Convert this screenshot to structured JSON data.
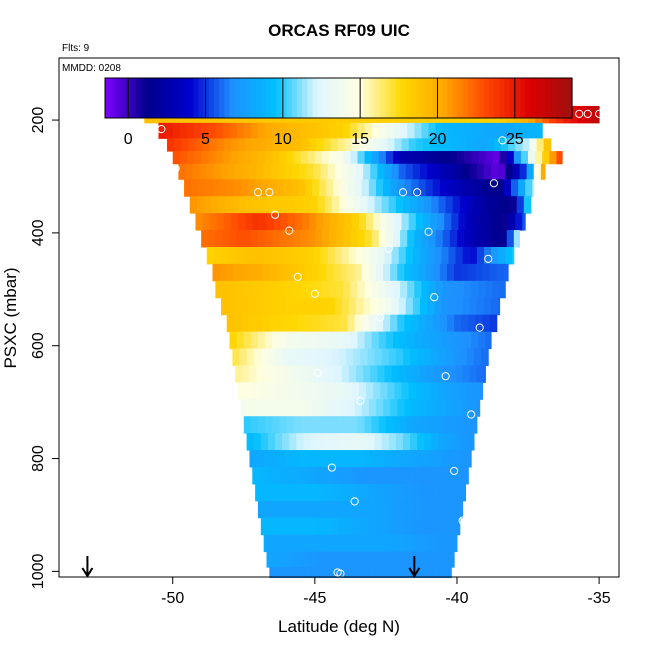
{
  "chart_data": {
    "type": "heatmap",
    "title": "ORCAS RF09 UIC",
    "subtitle_flights": "Flts: 9",
    "subtitle_date": "MMDD: 0208",
    "xlabel": "Latitude (deg N)",
    "ylabel": "PSXC (mbar)",
    "xlim": [
      -54,
      -34.3
    ],
    "ylim": [
      1010,
      90
    ],
    "y_reversed": true,
    "x_ticks": [
      -50,
      -45,
      -40,
      -35
    ],
    "x_tick_labels": [
      "-50",
      "-45",
      "-40",
      "-35"
    ],
    "y_ticks": [
      200,
      400,
      600,
      800,
      1000
    ],
    "y_tick_labels": [
      "200",
      "400",
      "600",
      "800",
      "1000"
    ],
    "colorbar": {
      "min": -1.5,
      "max": 28.7,
      "ticks": [
        0,
        5,
        10,
        15,
        20,
        25
      ],
      "tick_labels": [
        "0",
        "5",
        "10",
        "15",
        "20",
        "25"
      ],
      "palette": [
        "#7f00ff",
        "#00008b",
        "#0000cd",
        "#1e90ff",
        "#00bfff",
        "#e0f6ff",
        "#ffffe0",
        "#ffd700",
        "#ffa500",
        "#ff4500",
        "#dd0000",
        "#a01010"
      ]
    },
    "grid": false,
    "legend_position": "top",
    "layers": [
      {
        "p": 190,
        "lat_start": -51.0,
        "lat_end": -35.0,
        "anchors": [
          [
            -51.0,
            19
          ],
          [
            -40.5,
            18
          ],
          [
            -38.5,
            18
          ],
          [
            -37.5,
            20
          ],
          [
            -36.5,
            24
          ],
          [
            -35.0,
            27.5
          ]
        ]
      },
      {
        "p": 220,
        "lat_start": -50.5,
        "lat_end": -37.0,
        "anchors": [
          [
            -50.5,
            25
          ],
          [
            -48.5,
            23
          ],
          [
            -46.5,
            20
          ],
          [
            -44.0,
            18
          ],
          [
            -42.5,
            14
          ],
          [
            -40.5,
            9
          ],
          [
            -38.5,
            8
          ],
          [
            -37.0,
            9
          ]
        ]
      },
      {
        "p": 245,
        "lat_start": -50.2,
        "lat_end": -36.7,
        "anchors": [
          [
            -50.2,
            24
          ],
          [
            -48.0,
            21
          ],
          [
            -45.5,
            19
          ],
          [
            -43.5,
            15
          ],
          [
            -41.5,
            10
          ],
          [
            -39.0,
            8
          ],
          [
            -37.5,
            12
          ],
          [
            -36.7,
            20
          ]
        ]
      },
      {
        "p": 265,
        "lat_start": -50.0,
        "lat_end": -36.3,
        "anchors": [
          [
            -50.0,
            23
          ],
          [
            -46.5,
            19
          ],
          [
            -44.0,
            14
          ],
          [
            -42.0,
            3
          ],
          [
            -40.0,
            1
          ],
          [
            -38.5,
            -1
          ],
          [
            -37.5,
            12
          ],
          [
            -36.3,
            24
          ]
        ]
      },
      {
        "p": 290,
        "lat_start": -49.8,
        "lat_end": -36.9,
        "anchors": [
          [
            -49.8,
            22
          ],
          [
            -47.5,
            20
          ],
          [
            -45.0,
            17
          ],
          [
            -43.5,
            13
          ],
          [
            -42.0,
            6
          ],
          [
            -40.0,
            2
          ],
          [
            -38.5,
            -1
          ],
          [
            -37.5,
            6
          ],
          [
            -36.9,
            22
          ]
        ]
      },
      {
        "p": 320,
        "lat_start": -49.6,
        "lat_end": -37.3,
        "anchors": [
          [
            -49.6,
            22
          ],
          [
            -47.5,
            21
          ],
          [
            -45.5,
            19
          ],
          [
            -43.5,
            13
          ],
          [
            -42.0,
            7
          ],
          [
            -40.0,
            3
          ],
          [
            -38.5,
            1
          ],
          [
            -37.3,
            12
          ]
        ]
      },
      {
        "p": 350,
        "lat_start": -49.4,
        "lat_end": -37.4,
        "anchors": [
          [
            -49.4,
            21
          ],
          [
            -47.5,
            19
          ],
          [
            -45.0,
            18
          ],
          [
            -43.0,
            12
          ],
          [
            -41.0,
            7
          ],
          [
            -39.0,
            2
          ],
          [
            -38.0,
            1
          ],
          [
            -37.4,
            12
          ]
        ]
      },
      {
        "p": 380,
        "lat_start": -49.2,
        "lat_end": -37.6,
        "anchors": [
          [
            -49.2,
            21
          ],
          [
            -47.0,
            24
          ],
          [
            -45.5,
            22
          ],
          [
            -43.5,
            18
          ],
          [
            -41.5,
            10
          ],
          [
            -39.5,
            3
          ],
          [
            -38.3,
            1
          ],
          [
            -37.6,
            6
          ]
        ]
      },
      {
        "p": 410,
        "lat_start": -49.0,
        "lat_end": -37.8,
        "anchors": [
          [
            -49.0,
            22
          ],
          [
            -47.5,
            23
          ],
          [
            -45.0,
            21
          ],
          [
            -43.0,
            17
          ],
          [
            -41.5,
            9
          ],
          [
            -39.5,
            3
          ],
          [
            -38.3,
            1
          ],
          [
            -37.8,
            14
          ]
        ]
      },
      {
        "p": 440,
        "lat_start": -48.8,
        "lat_end": -38.0,
        "anchors": [
          [
            -48.8,
            18
          ],
          [
            -47.0,
            19
          ],
          [
            -45.0,
            18
          ],
          [
            -43.0,
            14
          ],
          [
            -41.5,
            9
          ],
          [
            -39.5,
            4
          ],
          [
            -38.0,
            10
          ]
        ]
      },
      {
        "p": 470,
        "lat_start": -48.6,
        "lat_end": -38.2,
        "anchors": [
          [
            -48.6,
            21
          ],
          [
            -47.0,
            20
          ],
          [
            -45.0,
            18
          ],
          [
            -43.5,
            16
          ],
          [
            -42.0,
            10
          ],
          [
            -40.0,
            5
          ],
          [
            -38.2,
            6
          ]
        ]
      },
      {
        "p": 500,
        "lat_start": -48.5,
        "lat_end": -38.3,
        "anchors": [
          [
            -48.5,
            19
          ],
          [
            -46.0,
            18
          ],
          [
            -44.0,
            17
          ],
          [
            -42.0,
            12
          ],
          [
            -40.5,
            7
          ],
          [
            -38.3,
            6
          ]
        ]
      },
      {
        "p": 530,
        "lat_start": -48.3,
        "lat_end": -38.5,
        "anchors": [
          [
            -48.3,
            19
          ],
          [
            -46.0,
            18
          ],
          [
            -44.5,
            18
          ],
          [
            -42.5,
            14
          ],
          [
            -40.5,
            7
          ],
          [
            -38.5,
            6
          ]
        ]
      },
      {
        "p": 560,
        "lat_start": -48.1,
        "lat_end": -38.6,
        "anchors": [
          [
            -48.1,
            19
          ],
          [
            -46.5,
            18
          ],
          [
            -44.0,
            17
          ],
          [
            -42.0,
            10
          ],
          [
            -40.0,
            6
          ],
          [
            -38.6,
            5
          ]
        ]
      },
      {
        "p": 590,
        "lat_start": -48.0,
        "lat_end": -38.8,
        "anchors": [
          [
            -48.0,
            18
          ],
          [
            -46.0,
            14
          ],
          [
            -44.0,
            13
          ],
          [
            -42.5,
            10
          ],
          [
            -41.0,
            8
          ],
          [
            -38.8,
            6
          ]
        ]
      },
      {
        "p": 620,
        "lat_start": -47.9,
        "lat_end": -38.9,
        "anchors": [
          [
            -47.9,
            17
          ],
          [
            -46.0,
            13
          ],
          [
            -44.0,
            12
          ],
          [
            -42.0,
            10
          ],
          [
            -40.0,
            7
          ],
          [
            -38.9,
            6
          ]
        ]
      },
      {
        "p": 650,
        "lat_start": -47.8,
        "lat_end": -39.0,
        "anchors": [
          [
            -47.8,
            16
          ],
          [
            -46.0,
            14
          ],
          [
            -44.0,
            12
          ],
          [
            -42.0,
            9
          ],
          [
            -40.5,
            7
          ],
          [
            -39.0,
            6
          ]
        ]
      },
      {
        "p": 680,
        "lat_start": -47.7,
        "lat_end": -39.1,
        "anchors": [
          [
            -47.7,
            15
          ],
          [
            -46.0,
            14
          ],
          [
            -44.0,
            13
          ],
          [
            -42.0,
            10
          ],
          [
            -40.5,
            8
          ],
          [
            -39.1,
            7
          ]
        ]
      },
      {
        "p": 710,
        "lat_start": -47.6,
        "lat_end": -39.2,
        "anchors": [
          [
            -47.6,
            14
          ],
          [
            -45.5,
            14
          ],
          [
            -43.5,
            12
          ],
          [
            -41.5,
            9
          ],
          [
            -39.2,
            7
          ]
        ]
      },
      {
        "p": 740,
        "lat_start": -47.5,
        "lat_end": -39.3,
        "anchors": [
          [
            -47.5,
            10
          ],
          [
            -45.5,
            11
          ],
          [
            -43.5,
            11
          ],
          [
            -41.5,
            8
          ],
          [
            -39.3,
            7
          ]
        ]
      },
      {
        "p": 770,
        "lat_start": -47.4,
        "lat_end": -39.4,
        "anchors": [
          [
            -47.4,
            9
          ],
          [
            -45.5,
            12
          ],
          [
            -43.5,
            13
          ],
          [
            -42.0,
            11
          ],
          [
            -40.5,
            8
          ],
          [
            -39.4,
            7
          ]
        ]
      },
      {
        "p": 800,
        "lat_start": -47.3,
        "lat_end": -39.5,
        "anchors": [
          [
            -47.3,
            8
          ],
          [
            -45.5,
            9
          ],
          [
            -43.5,
            9
          ],
          [
            -41.5,
            8
          ],
          [
            -39.5,
            7
          ]
        ]
      },
      {
        "p": 830,
        "lat_start": -47.2,
        "lat_end": -39.6,
        "anchors": [
          [
            -47.2,
            9
          ],
          [
            -45.0,
            8
          ],
          [
            -43.0,
            7
          ],
          [
            -41.0,
            7
          ],
          [
            -39.6,
            7
          ]
        ]
      },
      {
        "p": 860,
        "lat_start": -47.1,
        "lat_end": -39.7,
        "anchors": [
          [
            -47.1,
            9
          ],
          [
            -45.0,
            9
          ],
          [
            -43.0,
            8
          ],
          [
            -41.0,
            7
          ],
          [
            -39.7,
            7
          ]
        ]
      },
      {
        "p": 890,
        "lat_start": -47.0,
        "lat_end": -39.8,
        "anchors": [
          [
            -47.0,
            8
          ],
          [
            -45.0,
            8
          ],
          [
            -43.0,
            8
          ],
          [
            -41.0,
            7
          ],
          [
            -39.8,
            7
          ]
        ]
      },
      {
        "p": 920,
        "lat_start": -46.9,
        "lat_end": -39.9,
        "anchors": [
          [
            -46.9,
            9
          ],
          [
            -45.0,
            9
          ],
          [
            -43.0,
            8
          ],
          [
            -41.0,
            7
          ],
          [
            -39.9,
            7
          ]
        ]
      },
      {
        "p": 950,
        "lat_start": -46.8,
        "lat_end": -40.0,
        "anchors": [
          [
            -46.8,
            8
          ],
          [
            -44.5,
            8
          ],
          [
            -42.5,
            8
          ],
          [
            -40.0,
            7
          ]
        ]
      },
      {
        "p": 980,
        "lat_start": -46.7,
        "lat_end": -40.1,
        "anchors": [
          [
            -46.7,
            8
          ],
          [
            -44.5,
            7
          ],
          [
            -42.5,
            7
          ],
          [
            -40.1,
            7
          ]
        ]
      },
      {
        "p": 1005,
        "lat_start": -46.6,
        "lat_end": -40.2,
        "anchors": [
          [
            -46.6,
            7
          ],
          [
            -44.5,
            7
          ],
          [
            -42.5,
            7
          ],
          [
            -40.2,
            7
          ]
        ]
      }
    ],
    "observation_points": [
      [
        -50.9,
        189
      ],
      [
        -50.4,
        216
      ],
      [
        -49.9,
        286
      ],
      [
        -49.6,
        376
      ],
      [
        -49.3,
        484
      ],
      [
        -48.9,
        616
      ],
      [
        -48.7,
        778
      ],
      [
        -48.4,
        974
      ],
      [
        -48.3,
        994
      ],
      [
        -47.9,
        966
      ],
      [
        -47.0,
        328
      ],
      [
        -46.6,
        328
      ],
      [
        -46.4,
        368
      ],
      [
        -45.9,
        396
      ],
      [
        -45.6,
        478
      ],
      [
        -45.0,
        508
      ],
      [
        -44.9,
        648
      ],
      [
        -44.4,
        816
      ],
      [
        -44.2,
        1002
      ],
      [
        -44.1,
        1004
      ],
      [
        -43.6,
        876
      ],
      [
        -43.4,
        698
      ],
      [
        -42.7,
        550
      ],
      [
        -42.4,
        428
      ],
      [
        -41.9,
        328
      ],
      [
        -41.4,
        328
      ],
      [
        -41.0,
        398
      ],
      [
        -40.8,
        514
      ],
      [
        -40.4,
        654
      ],
      [
        -40.1,
        822
      ],
      [
        -39.8,
        910
      ],
      [
        -39.6,
        1004
      ],
      [
        -39.5,
        722
      ],
      [
        -39.2,
        568
      ],
      [
        -38.9,
        446
      ],
      [
        -38.7,
        312
      ],
      [
        -38.4,
        236
      ],
      [
        -37.9,
        189
      ],
      [
        -37.6,
        189
      ],
      [
        -37.3,
        189
      ],
      [
        -36.9,
        189
      ],
      [
        -36.5,
        189
      ],
      [
        -36.1,
        189
      ],
      [
        -35.7,
        189
      ],
      [
        -35.4,
        189
      ],
      [
        -35.0,
        189
      ],
      [
        -40.0,
        189
      ],
      [
        -39.5,
        189
      ]
    ],
    "arrow_markers": [
      {
        "lat": -53.0
      },
      {
        "lat": -41.5
      }
    ]
  }
}
